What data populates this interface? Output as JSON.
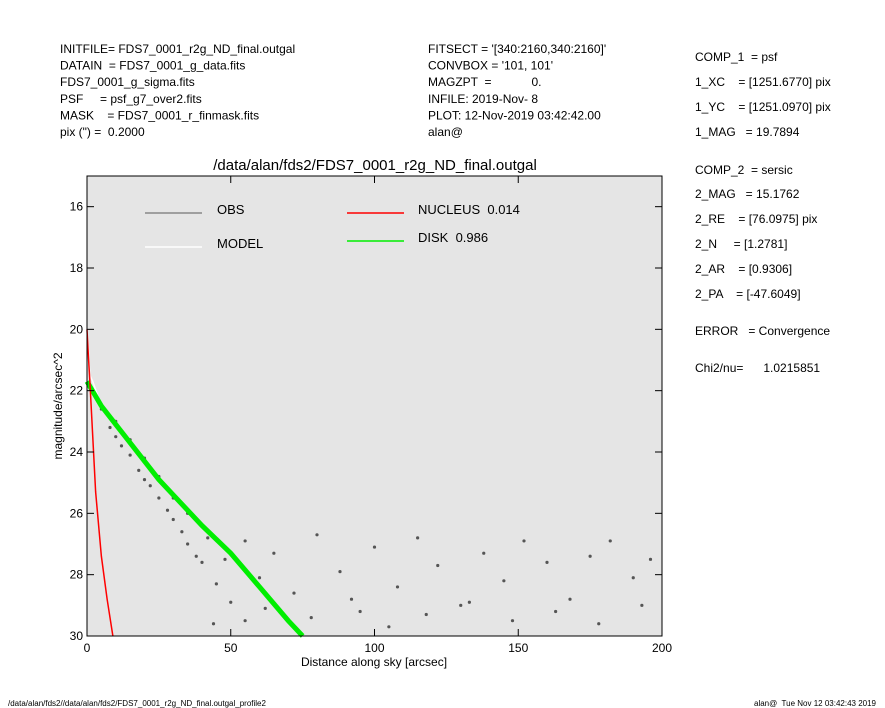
{
  "header": {
    "left": [
      "INITFILE= FDS7_0001_r2g_ND_final.outgal",
      "DATAIN  = FDS7_0001_g_data.fits",
      "FDS7_0001_g_sigma.fits",
      "PSF     = psf_g7_over2.fits",
      "MASK    = FDS7_0001_r_finmask.fits",
      "pix (\") =  0.2000"
    ],
    "middle": [
      "FITSECT = '[340:2160,340:2160]'",
      "CONVBOX = '101, 101'",
      "MAGZPT  =            0.",
      "INFILE: 2019-Nov- 8",
      "PLOT: 12-Nov-2019 03:42:42.00",
      "alan@"
    ],
    "right": [
      "COMP_1  = psf",
      "1_XC    = [1251.6770] pix",
      "1_YC    = [1251.0970] pix",
      "1_MAG   = 19.7894",
      "COMP_2  = sersic",
      "2_MAG   = 15.1762",
      "2_RE    = [76.0975] pix",
      "2_N     = [1.2781]",
      "2_AR    = [0.9306]",
      "2_PA    = [-47.6049]",
      "ERROR   = Convergence",
      "Chi2/nu=      1.0215851"
    ]
  },
  "footer": {
    "left": "/data/alan/fds2//data/alan/fds2/FDS7_0001_r2g_ND_final.outgal_profile2",
    "right": "alan@  Tue Nov 12 03:42:43 2019"
  },
  "chart_data": {
    "type": "scatter",
    "title": "/data/alan/fds2/FDS7_0001_r2g_ND_final.outgal",
    "xlabel": "Distance along sky [arcsec]",
    "ylabel": "magnitude/arcsec^2",
    "xlim": [
      0,
      200
    ],
    "ylim": [
      30,
      15
    ],
    "xticks": [
      0,
      50,
      100,
      150,
      200
    ],
    "yticks": [
      16,
      18,
      20,
      22,
      24,
      26,
      28,
      30
    ],
    "background": "#e5e5e5",
    "series": [
      {
        "name": "OBS",
        "color": "#555555",
        "mode": "points",
        "x": [
          2,
          5,
          8,
          10,
          12,
          15,
          18,
          20,
          22,
          25,
          28,
          30,
          33,
          35,
          38,
          40,
          45,
          50,
          55,
          4,
          10,
          15,
          20,
          25,
          30,
          35,
          42,
          48,
          55,
          60,
          65,
          72,
          80,
          88,
          95,
          100,
          108,
          115,
          122,
          130,
          138,
          145,
          152,
          160,
          168,
          175,
          182,
          190,
          196,
          44,
          62,
          78,
          92,
          105,
          118,
          133,
          148,
          163,
          178,
          193
        ],
        "values": [
          22.0,
          22.6,
          23.2,
          23.5,
          23.8,
          24.1,
          24.6,
          24.9,
          25.1,
          25.5,
          25.9,
          26.2,
          26.6,
          27.0,
          27.4,
          27.6,
          28.3,
          28.9,
          29.5,
          22.3,
          23.0,
          23.6,
          24.2,
          24.8,
          25.5,
          26.0,
          26.8,
          27.5,
          26.9,
          28.1,
          27.3,
          28.6,
          26.7,
          27.9,
          29.2,
          27.1,
          28.4,
          26.8,
          27.7,
          29.0,
          27.3,
          28.2,
          26.9,
          27.6,
          28.8,
          27.4,
          26.9,
          28.1,
          27.5,
          29.6,
          29.1,
          29.4,
          28.8,
          29.7,
          29.3,
          28.9,
          29.5,
          29.2,
          29.6,
          29.0
        ]
      },
      {
        "name": "MODEL",
        "color": "#ffffff",
        "mode": "line",
        "x": [
          0,
          1,
          2,
          5,
          10,
          20,
          30,
          40,
          50,
          60,
          70,
          75
        ],
        "values": [
          20.0,
          21.5,
          21.7,
          22.5,
          23.1,
          24.3,
          25.4,
          26.4,
          27.3,
          28.4,
          29.5,
          30.0
        ]
      },
      {
        "name": "NUCLEUS  0.014",
        "color": "#ff0000",
        "mode": "line",
        "x": [
          0,
          0.5,
          1,
          2,
          3,
          5,
          7,
          9
        ],
        "values": [
          20.0,
          20.9,
          21.7,
          23.5,
          25.3,
          27.4,
          28.8,
          30.0
        ]
      },
      {
        "name": "DISK  0.986",
        "color": "#00ee00",
        "mode": "line",
        "x": [
          0,
          5,
          10,
          20,
          25,
          30,
          40,
          50,
          60,
          70,
          75
        ],
        "values": [
          21.7,
          22.5,
          23.1,
          24.3,
          24.9,
          25.4,
          26.4,
          27.3,
          28.4,
          29.5,
          30.0
        ]
      }
    ]
  }
}
